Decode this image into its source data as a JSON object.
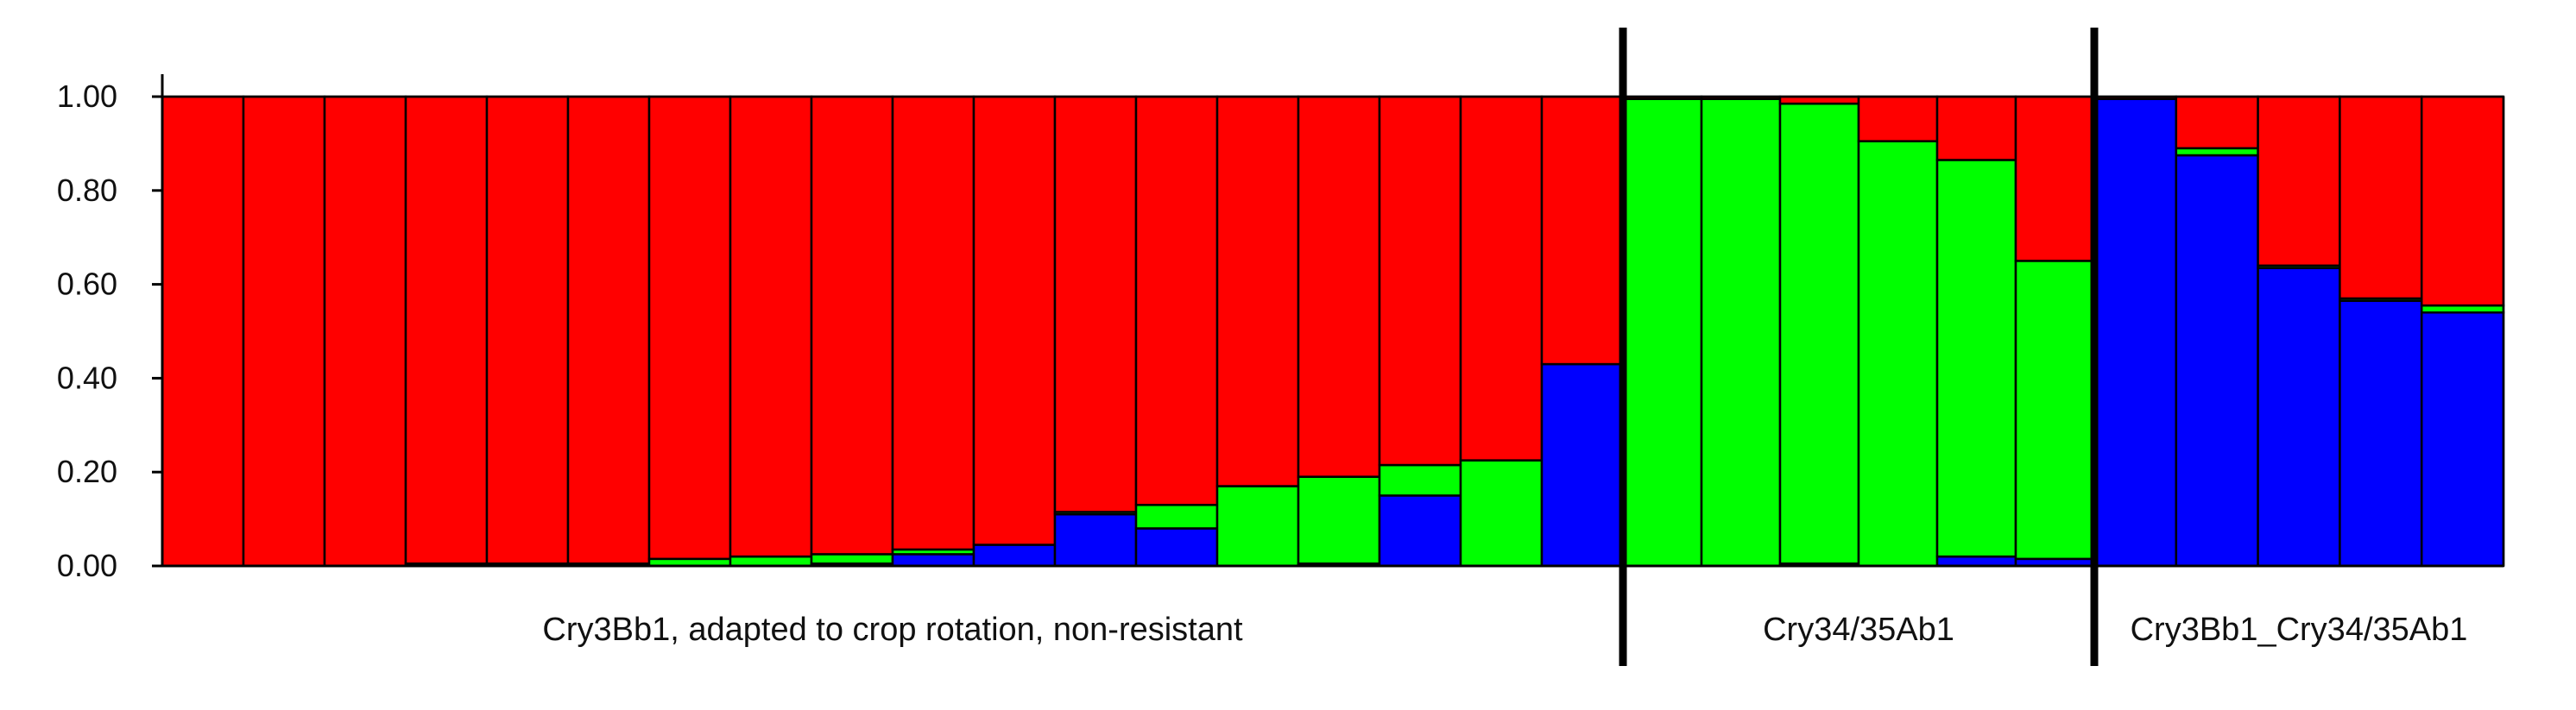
{
  "chart_data": {
    "type": "bar",
    "stacked": true,
    "title": "",
    "xlabel": "",
    "ylabel": "",
    "ylim": [
      0,
      1
    ],
    "y_ticks": [
      "0.00",
      "0.20",
      "0.40",
      "0.60",
      "0.80",
      "1.00"
    ],
    "y_tick_values": [
      0,
      0.2,
      0.4,
      0.6,
      0.8,
      1.0
    ],
    "grid": false,
    "legend": "none",
    "series_colors": {
      "blue": "#0000ff",
      "green": "#00ff00",
      "red": "#ff0000"
    },
    "series_order": [
      "blue",
      "green",
      "red"
    ],
    "groups": [
      {
        "label": "Cry3Bb1, adapted to crop rotation, non-resistant",
        "bars": [
          {
            "blue": 0.0,
            "green": 0.0,
            "red": 1.0
          },
          {
            "blue": 0.0,
            "green": 0.0,
            "red": 1.0
          },
          {
            "blue": 0.0,
            "green": 0.0,
            "red": 1.0
          },
          {
            "blue": 0.0,
            "green": 0.005,
            "red": 0.995
          },
          {
            "blue": 0.0,
            "green": 0.005,
            "red": 0.995
          },
          {
            "blue": 0.0,
            "green": 0.005,
            "red": 0.995
          },
          {
            "blue": 0.0,
            "green": 0.015,
            "red": 0.985
          },
          {
            "blue": 0.0,
            "green": 0.02,
            "red": 0.98
          },
          {
            "blue": 0.005,
            "green": 0.02,
            "red": 0.975
          },
          {
            "blue": 0.025,
            "green": 0.01,
            "red": 0.965
          },
          {
            "blue": 0.045,
            "green": 0.0,
            "red": 0.955
          },
          {
            "blue": 0.11,
            "green": 0.005,
            "red": 0.885
          },
          {
            "blue": 0.08,
            "green": 0.05,
            "red": 0.87
          },
          {
            "blue": 0.0,
            "green": 0.17,
            "red": 0.83
          },
          {
            "blue": 0.005,
            "green": 0.185,
            "red": 0.81
          },
          {
            "blue": 0.15,
            "green": 0.065,
            "red": 0.785
          },
          {
            "blue": 0.0,
            "green": 0.225,
            "red": 0.775
          },
          {
            "blue": 0.43,
            "green": 0.0,
            "red": 0.57
          }
        ]
      },
      {
        "label": "Cry34/35Ab1",
        "bars": [
          {
            "blue": 0.0,
            "green": 0.995,
            "red": 0.005
          },
          {
            "blue": 0.0,
            "green": 0.995,
            "red": 0.005
          },
          {
            "blue": 0.005,
            "green": 0.98,
            "red": 0.015
          },
          {
            "blue": 0.0,
            "green": 0.905,
            "red": 0.095
          },
          {
            "blue": 0.02,
            "green": 0.845,
            "red": 0.135
          },
          {
            "blue": 0.015,
            "green": 0.635,
            "red": 0.35
          }
        ]
      },
      {
        "label": "Cry3Bb1_Cry34/35Ab1",
        "bars": [
          {
            "blue": 0.995,
            "green": 0.0,
            "red": 0.005
          },
          {
            "blue": 0.875,
            "green": 0.015,
            "red": 0.11
          },
          {
            "blue": 0.635,
            "green": 0.005,
            "red": 0.36
          },
          {
            "blue": 0.565,
            "green": 0.005,
            "red": 0.43
          },
          {
            "blue": 0.54,
            "green": 0.015,
            "red": 0.445
          }
        ]
      }
    ]
  }
}
